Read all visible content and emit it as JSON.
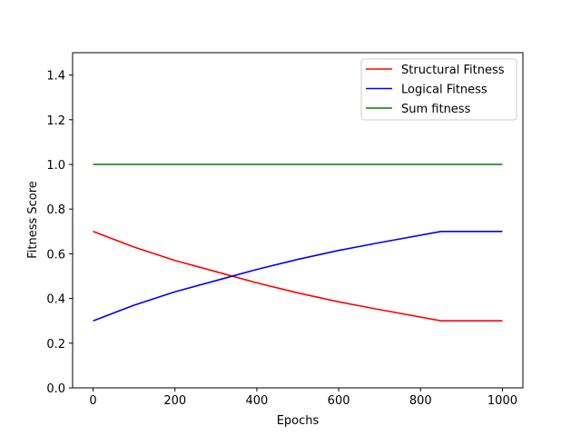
{
  "chart_data": {
    "type": "line",
    "title": "",
    "xlabel": "Epochs",
    "ylabel": "Fitness Score",
    "xlim": [
      -50,
      1050
    ],
    "ylim": [
      0.0,
      1.5
    ],
    "xticks": [
      0,
      200,
      400,
      600,
      800,
      1000
    ],
    "xtick_labels": [
      "0",
      "200",
      "400",
      "600",
      "800",
      "1000"
    ],
    "yticks": [
      0.0,
      0.2,
      0.4,
      0.6,
      0.8,
      1.0,
      1.2,
      1.4
    ],
    "ytick_labels": [
      "0.0",
      "0.2",
      "0.4",
      "0.6",
      "0.8",
      "1.0",
      "1.2",
      "1.4"
    ],
    "grid": false,
    "legend_position": "top-right",
    "x": [
      0,
      100,
      200,
      300,
      400,
      500,
      600,
      700,
      850,
      1000
    ],
    "series": [
      {
        "name": "Structural Fitness",
        "color": "#ff0000",
        "values": [
          0.7,
          0.63,
          0.57,
          0.52,
          0.47,
          0.425,
          0.385,
          0.35,
          0.3,
          0.3
        ]
      },
      {
        "name": "Logical Fitness",
        "color": "#0000ff",
        "values": [
          0.3,
          0.37,
          0.43,
          0.48,
          0.53,
          0.575,
          0.615,
          0.65,
          0.7,
          0.7
        ]
      },
      {
        "name": "Sum fitness",
        "color": "#008000",
        "values": [
          1.0,
          1.0,
          1.0,
          1.0,
          1.0,
          1.0,
          1.0,
          1.0,
          1.0,
          1.0
        ]
      }
    ]
  }
}
